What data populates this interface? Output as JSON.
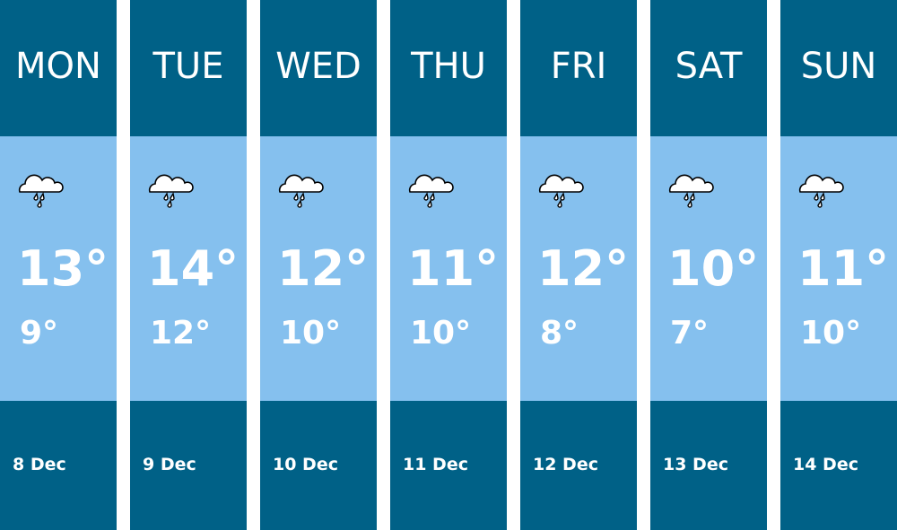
{
  "days": [
    {
      "day": "MON",
      "high": "13°",
      "low": "9°",
      "date": "8 Dec"
    },
    {
      "day": "TUE",
      "high": "14°",
      "low": "12°",
      "date": "9 Dec"
    },
    {
      "day": "WED",
      "high": "12°",
      "low": "10°",
      "date": "10 Dec"
    },
    {
      "day": "THU",
      "high": "11°",
      "low": "10°",
      "date": "11 Dec"
    },
    {
      "day": "FRI",
      "high": "12°",
      "low": "8°",
      "date": "12 Dec"
    },
    {
      "day": "SAT",
      "high": "10°",
      "low": "7°",
      "date": "13 Dec"
    },
    {
      "day": "SUN",
      "high": "11°",
      "low": "10°",
      "date": "14 Dec"
    }
  ]
}
